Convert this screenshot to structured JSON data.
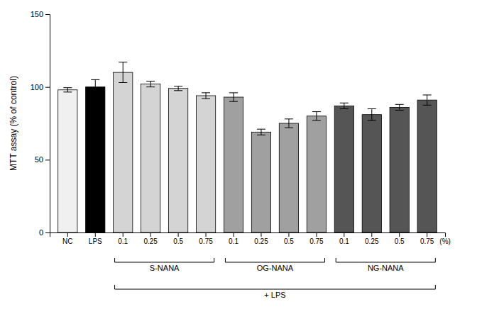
{
  "chart_data": {
    "type": "bar",
    "categories": [
      "NC",
      "LPS",
      "0.1",
      "0.25",
      "0.5",
      "0.75",
      "0.1",
      "0.25",
      "0.5",
      "0.75",
      "0.1",
      "0.25",
      "0.5",
      "0.75"
    ],
    "values": [
      98,
      100,
      110,
      102,
      99,
      94,
      93,
      69,
      75,
      80,
      87,
      81,
      86,
      91
    ],
    "errors": [
      1.5,
      5,
      7,
      2,
      1.5,
      2,
      3,
      2,
      3,
      3,
      2,
      4,
      2,
      3.5
    ],
    "colors": [
      "#f0f0f0",
      "#000000",
      "#d4d4d4",
      "#d4d4d4",
      "#d4d4d4",
      "#d4d4d4",
      "#a0a0a0",
      "#a0a0a0",
      "#a0a0a0",
      "#a0a0a0",
      "#555555",
      "#555555",
      "#555555",
      "#555555"
    ],
    "ylabel": "MTT assay (% of control)",
    "xlabel": "(%)",
    "ylim": [
      0,
      150
    ],
    "yticks": [
      0,
      50,
      100,
      150
    ],
    "groups": [
      {
        "label": "S-NANA",
        "start": 2,
        "end": 5
      },
      {
        "label": "OG-NANA",
        "start": 6,
        "end": 9
      },
      {
        "label": "NG-NANA",
        "start": 10,
        "end": 13
      }
    ],
    "treatment": {
      "label": "+ LPS",
      "start": 2,
      "end": 13
    }
  }
}
